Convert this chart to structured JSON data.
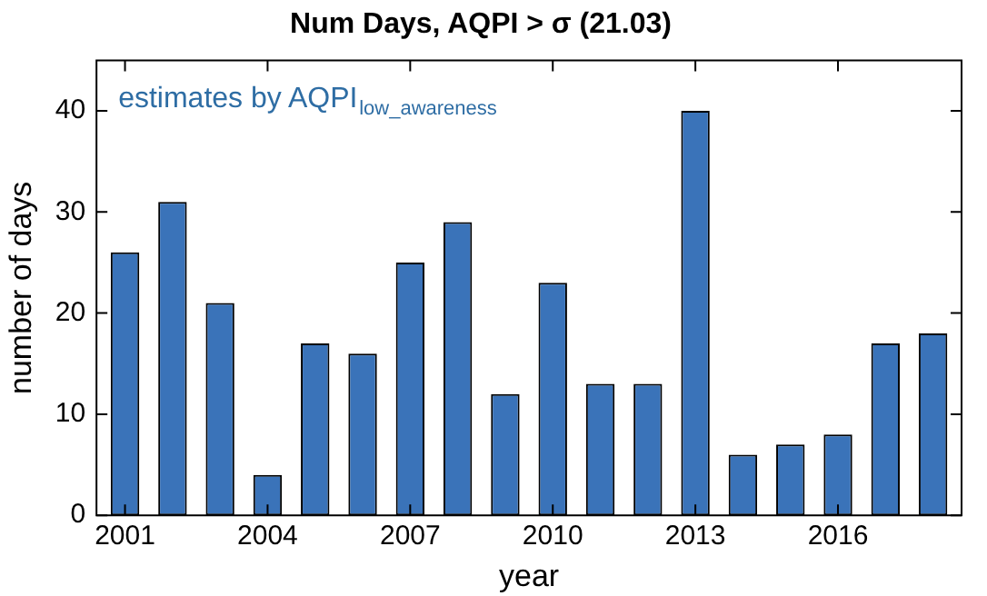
{
  "chart_data": {
    "type": "bar",
    "title": "Num Days, AQPI > σ (21.03)",
    "xlabel": "year",
    "ylabel": "number of days",
    "annotations": [
      "estimates by AQPI$_{low_awareness}$"
    ],
    "x": [
      2001,
      2002,
      2003,
      2004,
      2005,
      2006,
      2007,
      2008,
      2009,
      2010,
      2011,
      2012,
      2013,
      2014,
      2015,
      2016,
      2017,
      2018
    ],
    "values": [
      26,
      31,
      21,
      4,
      17,
      16,
      25,
      29,
      12,
      23,
      13,
      13,
      40,
      6,
      7,
      8,
      17,
      18
    ],
    "color": "#3a73b9",
    "xlim": [
      2000.4,
      2018.6
    ],
    "xticks": [
      2001,
      2004,
      2007,
      2010,
      2013,
      2016
    ],
    "ylim": [
      0,
      45
    ],
    "yticks": [
      0,
      10,
      20,
      30,
      40
    ],
    "grid": false,
    "legend": false
  }
}
